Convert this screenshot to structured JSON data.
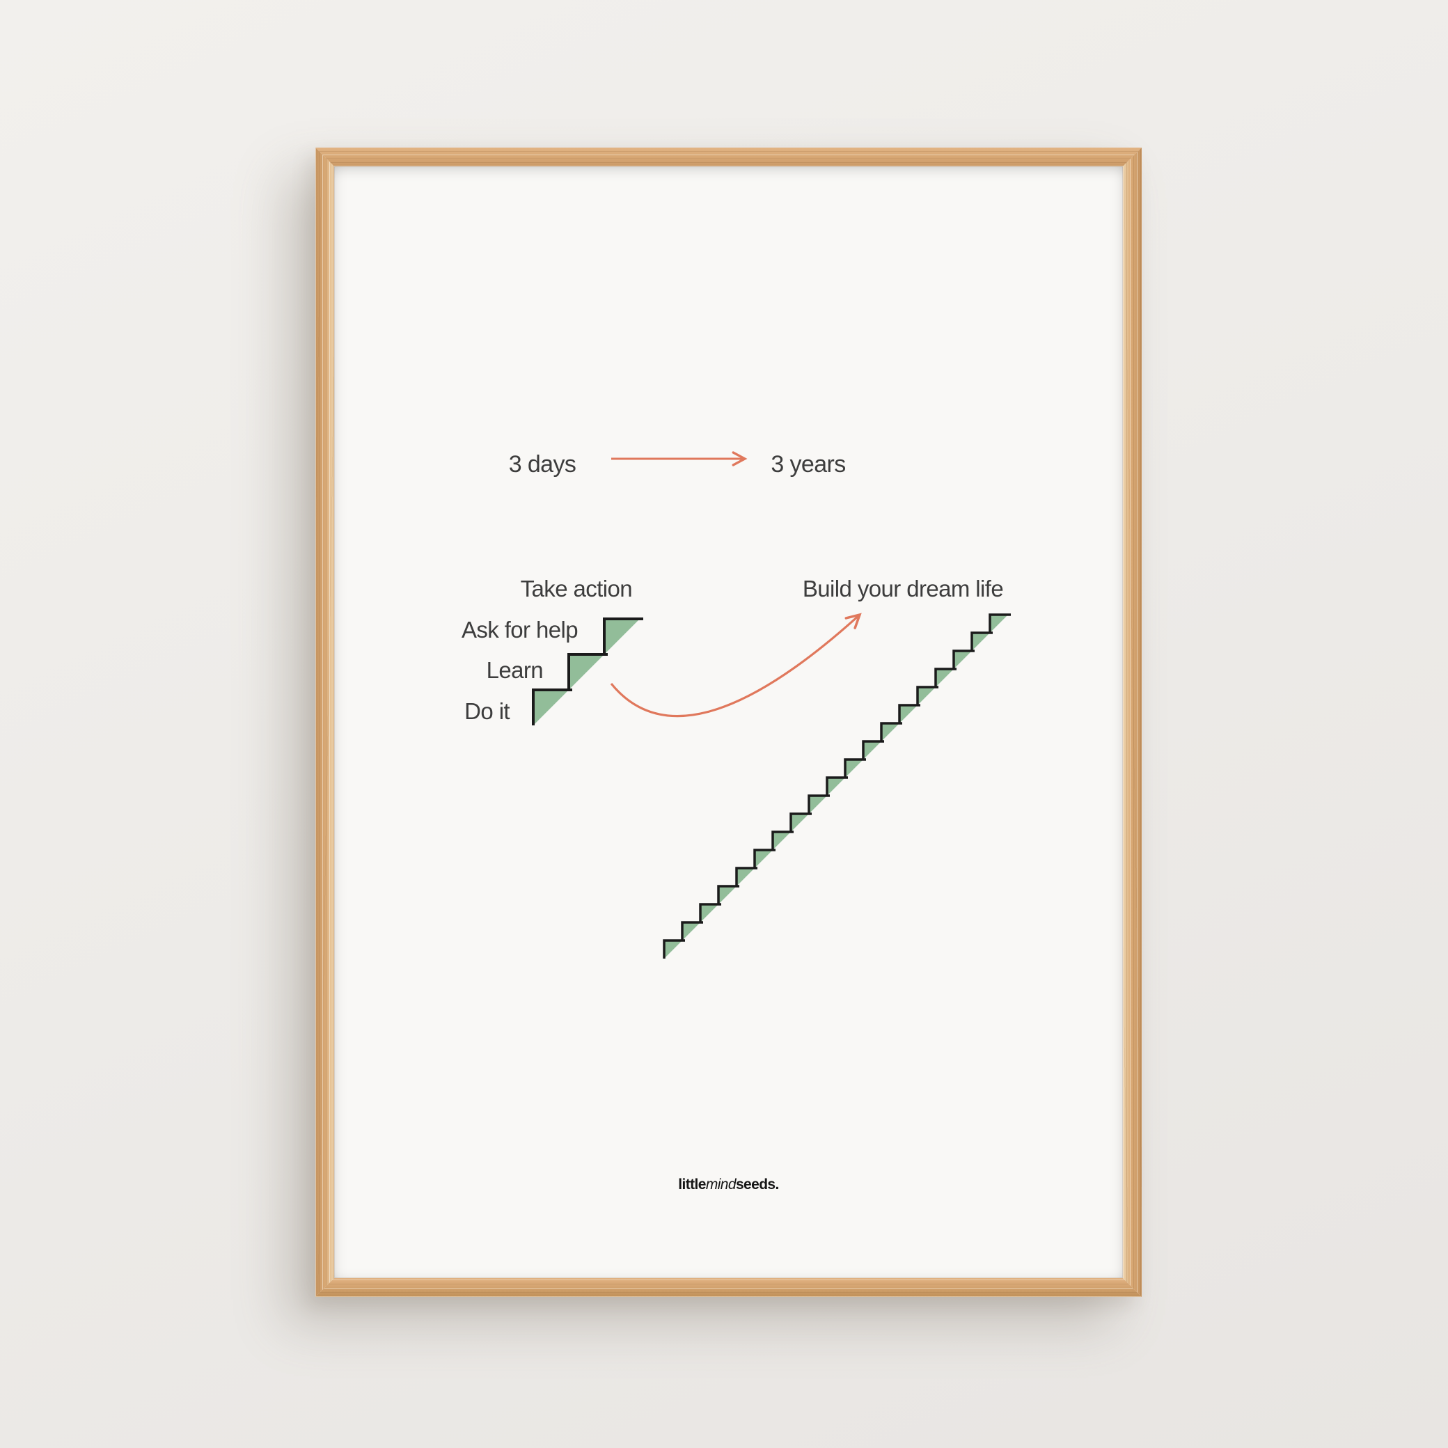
{
  "poster": {
    "timeline": {
      "from": "3 days",
      "to": "3 years"
    },
    "small_staircase": {
      "labels": [
        "Take action",
        "Ask for help",
        "Learn",
        "Do it"
      ],
      "steps": 3,
      "step_size": 51
    },
    "large_staircase": {
      "label": "Build your dream life",
      "steps": 19,
      "step_size": 26
    },
    "brand": {
      "bold_prefix": "little",
      "italic_middle": "mind",
      "bold_suffix": "seeds."
    }
  },
  "colors": {
    "wall": "#edebe8",
    "frame_wood": "#d7a673",
    "poster_bg": "#f9f8f6",
    "stair_green": "#92bd99",
    "stair_outline": "#1b1b1b",
    "arrow_orange": "#e0785c",
    "text": "#3d3d3d",
    "brand_text": "#161616"
  }
}
